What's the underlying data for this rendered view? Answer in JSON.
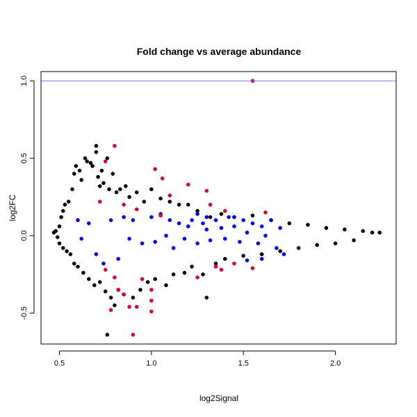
{
  "chart_data": {
    "type": "scatter",
    "title": "Fold change vs average abundance",
    "xlabel": "log2Signal",
    "ylabel": "log2FC",
    "xlim": [
      0.4,
      2.33
    ],
    "ylim": [
      -0.7,
      1.06
    ],
    "x_ticks": [
      0.5,
      1.0,
      1.5,
      2.0
    ],
    "x_tick_labels": [
      "0.5",
      "1.0",
      "1.5",
      "2.0"
    ],
    "y_ticks": [
      -0.5,
      0.0,
      0.5,
      1.0
    ],
    "y_tick_labels": [
      "-0.5",
      "0.0",
      "0.5",
      "1.0"
    ],
    "reference_line": {
      "y": 1.0,
      "color": "#7777ff"
    },
    "grid": false,
    "colors": {
      "all": "#000000",
      "highlight_blue": "#0000ff",
      "highlight_red": "#dd0033"
    },
    "series": [
      {
        "color": "#000000",
        "points": [
          [
            0.47,
            0.02
          ],
          [
            0.48,
            0.03
          ],
          [
            0.49,
            -0.01
          ],
          [
            0.5,
            0.06
          ],
          [
            0.5,
            -0.05
          ],
          [
            0.51,
            0.12
          ],
          [
            0.52,
            0.16
          ],
          [
            0.52,
            -0.08
          ],
          [
            0.53,
            0.2
          ],
          [
            0.54,
            -0.1
          ],
          [
            0.55,
            0.22
          ],
          [
            0.56,
            -0.12
          ],
          [
            0.57,
            0.3
          ],
          [
            0.58,
            0.4
          ],
          [
            0.58,
            -0.18
          ],
          [
            0.59,
            0.45
          ],
          [
            0.6,
            -0.2
          ],
          [
            0.61,
            0.42
          ],
          [
            0.62,
            0.36
          ],
          [
            0.63,
            -0.24
          ],
          [
            0.64,
            0.5
          ],
          [
            0.65,
            0.48
          ],
          [
            0.66,
            -0.28
          ],
          [
            0.67,
            0.47
          ],
          [
            0.68,
            0.45
          ],
          [
            0.69,
            -0.32
          ],
          [
            0.7,
            0.58
          ],
          [
            0.71,
            0.38
          ],
          [
            0.72,
            -0.3
          ],
          [
            0.73,
            0.42
          ],
          [
            0.74,
            0.34
          ],
          [
            0.75,
            -0.36
          ],
          [
            0.76,
            0.5
          ],
          [
            0.77,
            0.3
          ],
          [
            0.78,
            -0.4
          ],
          [
            0.79,
            0.4
          ],
          [
            0.8,
            -0.45
          ],
          [
            0.81,
            0.28
          ],
          [
            0.82,
            -0.35
          ],
          [
            0.83,
            0.3
          ],
          [
            0.85,
            -0.38
          ],
          [
            0.86,
            0.32
          ],
          [
            0.88,
            0.25
          ],
          [
            0.9,
            -0.4
          ],
          [
            0.92,
            0.28
          ],
          [
            0.94,
            -0.35
          ],
          [
            0.96,
            0.22
          ],
          [
            0.98,
            -0.3
          ],
          [
            1.0,
            0.3
          ],
          [
            1.02,
            -0.28
          ],
          [
            1.05,
            0.24
          ],
          [
            1.08,
            -0.32
          ],
          [
            1.1,
            0.22
          ],
          [
            1.12,
            -0.25
          ],
          [
            1.15,
            0.2
          ],
          [
            1.18,
            -0.24
          ],
          [
            1.2,
            0.2
          ],
          [
            1.22,
            -0.2
          ],
          [
            1.25,
            0.16
          ],
          [
            1.28,
            -0.25
          ],
          [
            1.3,
            -0.4
          ],
          [
            1.32,
            0.12
          ],
          [
            1.35,
            -0.18
          ],
          [
            1.38,
            0.14
          ],
          [
            1.4,
            -0.15
          ],
          [
            1.45,
            0.12
          ],
          [
            1.5,
            -0.13
          ],
          [
            1.55,
            0.13
          ],
          [
            1.6,
            -0.12
          ],
          [
            1.65,
            0.1
          ],
          [
            1.7,
            -0.1
          ],
          [
            1.75,
            0.08
          ],
          [
            1.8,
            -0.08
          ],
          [
            1.85,
            0.07
          ],
          [
            1.9,
            -0.06
          ],
          [
            1.95,
            0.05
          ],
          [
            2.0,
            -0.05
          ],
          [
            2.05,
            0.04
          ],
          [
            2.1,
            -0.03
          ],
          [
            2.15,
            0.03
          ],
          [
            2.2,
            0.02
          ],
          [
            2.24,
            0.02
          ],
          [
            0.76,
            -0.64
          ],
          [
            0.72,
            0.32
          ],
          [
            0.7,
            0.54
          ]
        ]
      },
      {
        "color": "#0000ff",
        "points": [
          [
            0.6,
            0.1
          ],
          [
            0.62,
            -0.02
          ],
          [
            0.66,
            0.08
          ],
          [
            0.7,
            -0.12
          ],
          [
            0.74,
            -0.18
          ],
          [
            0.78,
            0.1
          ],
          [
            0.82,
            -0.15
          ],
          [
            0.85,
            0.12
          ],
          [
            0.88,
            -0.02
          ],
          [
            0.9,
            0.1
          ],
          [
            0.95,
            -0.05
          ],
          [
            1.0,
            0.12
          ],
          [
            1.02,
            -0.04
          ],
          [
            1.05,
            0.14
          ],
          [
            1.08,
            0.0
          ],
          [
            1.1,
            0.1
          ],
          [
            1.12,
            -0.08
          ],
          [
            1.15,
            0.08
          ],
          [
            1.18,
            -0.02
          ],
          [
            1.2,
            0.06
          ],
          [
            1.22,
            0.1
          ],
          [
            1.25,
            -0.05
          ],
          [
            1.28,
            0.08
          ],
          [
            1.3,
            0.04
          ],
          [
            1.32,
            -0.03
          ],
          [
            1.35,
            0.1
          ],
          [
            1.38,
            0.05
          ],
          [
            1.4,
            -0.02
          ],
          [
            1.42,
            0.12
          ],
          [
            1.45,
            0.06
          ],
          [
            1.48,
            -0.04
          ],
          [
            1.5,
            0.1
          ],
          [
            1.52,
            0.02
          ],
          [
            1.55,
            0.08
          ],
          [
            1.58,
            -0.05
          ],
          [
            1.6,
            0.06
          ],
          [
            1.62,
            0.0
          ],
          [
            1.65,
            0.1
          ],
          [
            1.68,
            -0.08
          ],
          [
            1.7,
            0.05
          ],
          [
            1.52,
            -0.16
          ],
          [
            1.6,
            -0.15
          ],
          [
            1.72,
            -0.12
          ],
          [
            1.25,
            0.14
          ],
          [
            1.3,
            0.12
          ],
          [
            1.45,
            0.12
          ]
        ]
      },
      {
        "color": "#dd0033",
        "points": [
          [
            1.55,
            1.0
          ],
          [
            0.8,
            0.58
          ],
          [
            0.75,
            0.48
          ],
          [
            1.02,
            0.43
          ],
          [
            1.06,
            0.37
          ],
          [
            1.2,
            0.33
          ],
          [
            1.3,
            0.29
          ],
          [
            1.1,
            0.26
          ],
          [
            0.85,
            0.2
          ],
          [
            0.92,
            0.17
          ],
          [
            1.05,
            0.13
          ],
          [
            1.4,
            0.16
          ],
          [
            1.35,
            -0.2
          ],
          [
            1.25,
            -0.27
          ],
          [
            0.82,
            -0.35
          ],
          [
            0.95,
            -0.28
          ],
          [
            1.0,
            -0.35
          ],
          [
            1.0,
            -0.42
          ],
          [
            0.88,
            -0.46
          ],
          [
            0.92,
            -0.46
          ],
          [
            1.0,
            -0.49
          ],
          [
            0.78,
            -0.48
          ],
          [
            0.9,
            -0.64
          ],
          [
            0.85,
            -0.38
          ],
          [
            0.8,
            -0.27
          ],
          [
            1.55,
            -0.21
          ],
          [
            1.45,
            -0.18
          ],
          [
            1.38,
            -0.22
          ],
          [
            0.75,
            -0.22
          ],
          [
            0.72,
            0.22
          ],
          [
            1.62,
            0.15
          ],
          [
            1.32,
            0.2
          ]
        ]
      }
    ]
  }
}
